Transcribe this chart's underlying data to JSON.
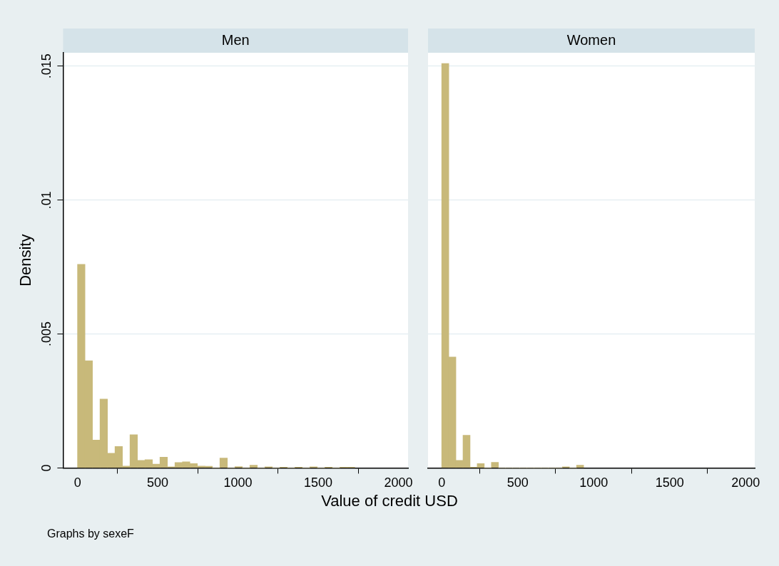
{
  "chart_data": [
    {
      "type": "histogram",
      "title": "Men",
      "ylabel": "Density",
      "xlabel": "Value of credit USD",
      "annotations": [
        "Graphs by sexeF"
      ],
      "bins": [
        0,
        46.7,
        93.4,
        140.1,
        186.8,
        233.5,
        280.2,
        326.9,
        373.6,
        420.3,
        467,
        513.7,
        560.4,
        607.1,
        653.8,
        700.5,
        747.2,
        793.9,
        840.6,
        887.3,
        934,
        980.7,
        1027.4,
        1074.1,
        1120.8,
        1167.5,
        1214.2,
        1260.9,
        1307.6,
        1354.3,
        1401,
        1447.7,
        1494.4,
        1541.1,
        1587.8,
        1634.5,
        1681.2,
        1727.9
      ],
      "values": [
        0.0076,
        0.004,
        0.00104,
        0.00257,
        0.00055,
        0.0008,
        7e-05,
        0.00124,
        0.00028,
        0.00031,
        0.00014,
        0.0004,
        4e-05,
        0.0002,
        0.00023,
        0.00016,
        7e-05,
        6e-05,
        0,
        0.00037,
        0,
        5e-05,
        0,
        0.0001,
        0,
        4e-05,
        0,
        3e-05,
        0,
        3e-05,
        0,
        4e-05,
        0,
        3e-05,
        0,
        3e-05,
        3e-05
      ],
      "color": "#c8b97a",
      "xlim": [
        -90,
        2060
      ],
      "xticks": [
        0,
        500,
        1000,
        1500,
        2000
      ],
      "ylim": [
        0,
        0.0155
      ],
      "yticks": [
        0,
        {
          "value": 0.005,
          "label": ".005"
        },
        {
          "value": 0.01,
          "label": ".01"
        },
        {
          "value": 0.015,
          "label": ".015"
        }
      ],
      "grid": "y"
    },
    {
      "type": "histogram",
      "title": "Women",
      "bins": [
        0,
        46.7,
        93.4,
        140.1,
        186.8,
        233.5,
        280.2,
        326.9,
        373.6,
        420.3,
        467,
        513.7,
        560.4,
        607.1,
        653.8,
        700.5,
        747.2,
        793.9,
        840.6,
        887.3,
        934
      ],
      "values": [
        0.0151,
        0.00414,
        0.00028,
        0.00122,
        3e-05,
        0.00016,
        0,
        0.00021,
        0,
        0,
        0,
        0,
        0,
        0,
        0,
        0,
        0,
        4e-05,
        0,
        0.0001
      ],
      "color": "#c8b97a",
      "xlim": [
        -90,
        2060
      ],
      "xticks": [
        0,
        500,
        1000,
        1500,
        2000
      ],
      "ylim": [
        0,
        0.0155
      ],
      "yticks": [
        0,
        0.005,
        0.01,
        0.015
      ],
      "grid": "y",
      "tick_labels": "x"
    }
  ]
}
